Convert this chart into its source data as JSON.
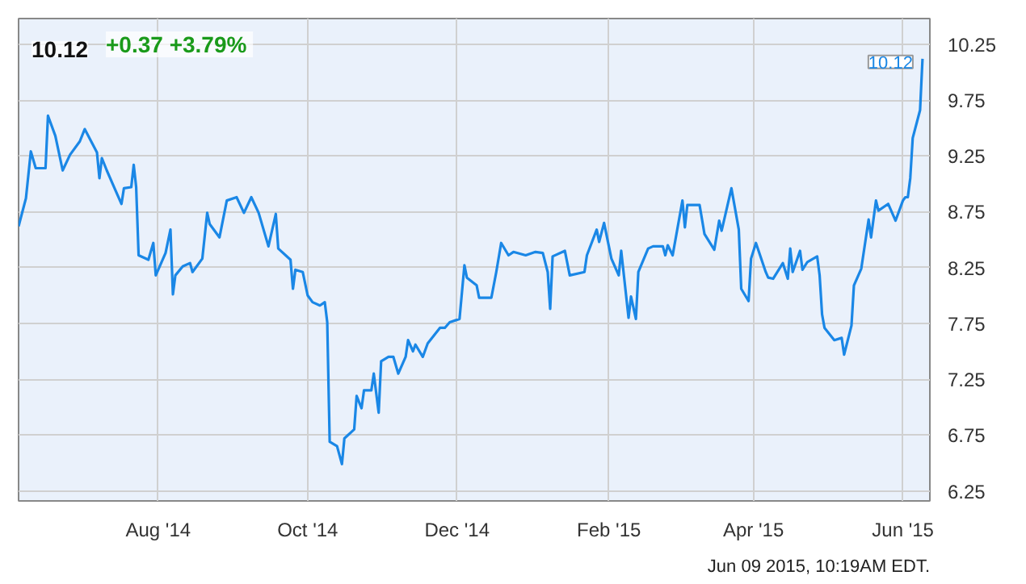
{
  "chart_data": {
    "type": "line",
    "title": "10.12",
    "subtitle": "+0.37  +3.79%",
    "annotations": [
      {
        "text": "10.12",
        "x": "2015-06-09",
        "y": 10.12
      },
      "Jun 09 2015, 10:19AM EDT."
    ],
    "x": [
      "2014-06-05",
      "2014-06-08",
      "2014-06-10",
      "2014-06-12",
      "2014-06-16",
      "2014-06-17",
      "2014-06-20",
      "2014-06-23",
      "2014-06-26",
      "2014-06-30",
      "2014-07-02",
      "2014-07-07",
      "2014-07-08",
      "2014-07-09",
      "2014-07-11",
      "2014-07-14",
      "2014-07-17",
      "2014-07-18",
      "2014-07-21",
      "2014-07-22",
      "2014-07-23",
      "2014-07-24",
      "2014-07-28",
      "2014-07-30",
      "2014-07-31",
      "2014-08-04",
      "2014-08-06",
      "2014-08-07",
      "2014-08-08",
      "2014-08-11",
      "2014-08-14",
      "2014-08-15",
      "2014-08-19",
      "2014-08-21",
      "2014-08-22",
      "2014-08-26",
      "2014-08-29",
      "2014-09-02",
      "2014-09-05",
      "2014-09-08",
      "2014-09-11",
      "2014-09-15",
      "2014-09-18",
      "2014-09-19",
      "2014-09-24",
      "2014-09-25",
      "2014-09-26",
      "2014-09-29",
      "2014-10-01",
      "2014-10-03",
      "2014-10-06",
      "2014-10-08",
      "2014-10-09",
      "2014-10-10",
      "2014-10-13",
      "2014-10-15",
      "2014-10-16",
      "2014-10-20",
      "2014-10-21",
      "2014-10-23",
      "2014-10-24",
      "2014-10-27",
      "2014-10-28",
      "2014-10-30",
      "2014-10-31",
      "2014-11-03",
      "2014-11-05",
      "2014-11-07",
      "2014-11-10",
      "2014-11-11",
      "2014-11-13",
      "2014-11-14",
      "2014-11-17",
      "2014-11-19",
      "2014-11-24",
      "2014-11-26",
      "2014-11-28",
      "2014-12-02",
      "2014-12-04",
      "2014-12-05",
      "2014-12-09",
      "2014-12-10",
      "2014-12-15",
      "2014-12-17",
      "2014-12-19",
      "2014-12-22",
      "2014-12-24",
      "2014-12-29",
      "2015-01-02",
      "2015-01-05",
      "2015-01-07",
      "2015-01-08",
      "2015-01-09",
      "2015-01-14",
      "2015-01-16",
      "2015-01-22",
      "2015-01-23",
      "2015-01-27",
      "2015-01-28",
      "2015-01-30",
      "2015-02-02",
      "2015-02-05",
      "2015-02-06",
      "2015-02-09",
      "2015-02-10",
      "2015-02-12",
      "2015-02-13",
      "2015-02-17",
      "2015-02-19",
      "2015-02-23",
      "2015-02-24",
      "2015-02-25",
      "2015-02-27",
      "2015-03-03",
      "2015-03-04",
      "2015-03-05",
      "2015-03-10",
      "2015-03-12",
      "2015-03-16",
      "2015-03-18",
      "2015-03-19",
      "2015-03-23",
      "2015-03-26",
      "2015-03-27",
      "2015-03-30",
      "2015-03-31",
      "2015-04-02",
      "2015-04-06",
      "2015-04-07",
      "2015-04-09",
      "2015-04-13",
      "2015-04-15",
      "2015-04-16",
      "2015-04-17",
      "2015-04-20",
      "2015-04-21",
      "2015-04-23",
      "2015-04-27",
      "2015-04-28",
      "2015-04-29",
      "2015-04-30",
      "2015-05-04",
      "2015-05-07",
      "2015-05-08",
      "2015-05-11",
      "2015-05-12",
      "2015-05-15",
      "2015-05-18",
      "2015-05-19",
      "2015-05-21",
      "2015-05-22",
      "2015-05-26",
      "2015-05-29",
      "2015-06-01",
      "2015-06-02",
      "2015-06-03",
      "2015-06-04",
      "2015-06-05",
      "2015-06-08",
      "2015-06-09"
    ],
    "series": [
      {
        "color": "#1a87e6",
        "values": [
          8.62,
          8.87,
          9.29,
          9.14,
          9.14,
          9.61,
          9.43,
          9.12,
          9.26,
          9.38,
          9.49,
          9.28,
          9.05,
          9.23,
          9.12,
          8.97,
          8.82,
          8.96,
          8.97,
          9.17,
          8.97,
          8.36,
          8.32,
          8.47,
          8.18,
          8.38,
          8.59,
          8.01,
          8.18,
          8.26,
          8.29,
          8.21,
          8.33,
          8.74,
          8.64,
          8.52,
          8.85,
          8.88,
          8.74,
          8.88,
          8.74,
          8.44,
          8.73,
          8.42,
          8.32,
          8.06,
          8.23,
          8.21,
          8.0,
          7.94,
          7.91,
          7.94,
          7.76,
          6.69,
          6.65,
          6.49,
          6.72,
          6.8,
          7.1,
          6.99,
          7.15,
          7.15,
          7.3,
          6.95,
          7.41,
          7.45,
          7.45,
          7.3,
          7.45,
          7.6,
          7.5,
          7.56,
          7.45,
          7.57,
          7.71,
          7.71,
          7.76,
          7.79,
          8.27,
          8.16,
          8.09,
          7.98,
          7.98,
          8.21,
          8.47,
          8.36,
          8.39,
          8.36,
          8.39,
          8.38,
          8.21,
          7.88,
          8.35,
          8.4,
          8.18,
          8.21,
          8.36,
          8.59,
          8.48,
          8.65,
          8.33,
          8.18,
          8.4,
          7.8,
          7.99,
          7.79,
          8.21,
          8.42,
          8.44,
          8.44,
          8.36,
          8.45,
          8.36,
          8.85,
          8.61,
          8.81,
          8.81,
          8.55,
          8.41,
          8.67,
          8.58,
          8.96,
          8.59,
          8.06,
          7.95,
          8.33,
          8.47,
          8.21,
          8.16,
          8.15,
          8.29,
          8.15,
          8.42,
          8.21,
          8.4,
          8.23,
          8.3,
          8.35,
          8.18,
          7.83,
          7.71,
          7.6,
          7.62,
          7.47,
          7.73,
          8.09,
          8.24,
          8.68,
          8.52,
          8.85,
          8.76,
          8.82,
          8.67,
          8.85,
          8.88,
          8.88,
          9.05,
          9.41,
          9.66,
          10.12
        ]
      }
    ],
    "xlim": [
      "2014-06-05",
      "2015-06-12"
    ],
    "xticks": [
      {
        "value": "2014-08-01",
        "label": "Aug '14"
      },
      {
        "value": "2014-10-01",
        "label": "Oct '14"
      },
      {
        "value": "2014-12-01",
        "label": "Dec '14"
      },
      {
        "value": "2015-02-01",
        "label": "Feb '15"
      },
      {
        "value": "2015-04-01",
        "label": "Apr '15"
      },
      {
        "value": "2015-06-01",
        "label": "Jun '15"
      }
    ],
    "ylim": [
      6.16,
      10.48
    ],
    "yticks": [
      6.25,
      6.75,
      7.25,
      7.75,
      8.25,
      8.75,
      9.25,
      9.75,
      10.25
    ],
    "grid": true
  }
}
